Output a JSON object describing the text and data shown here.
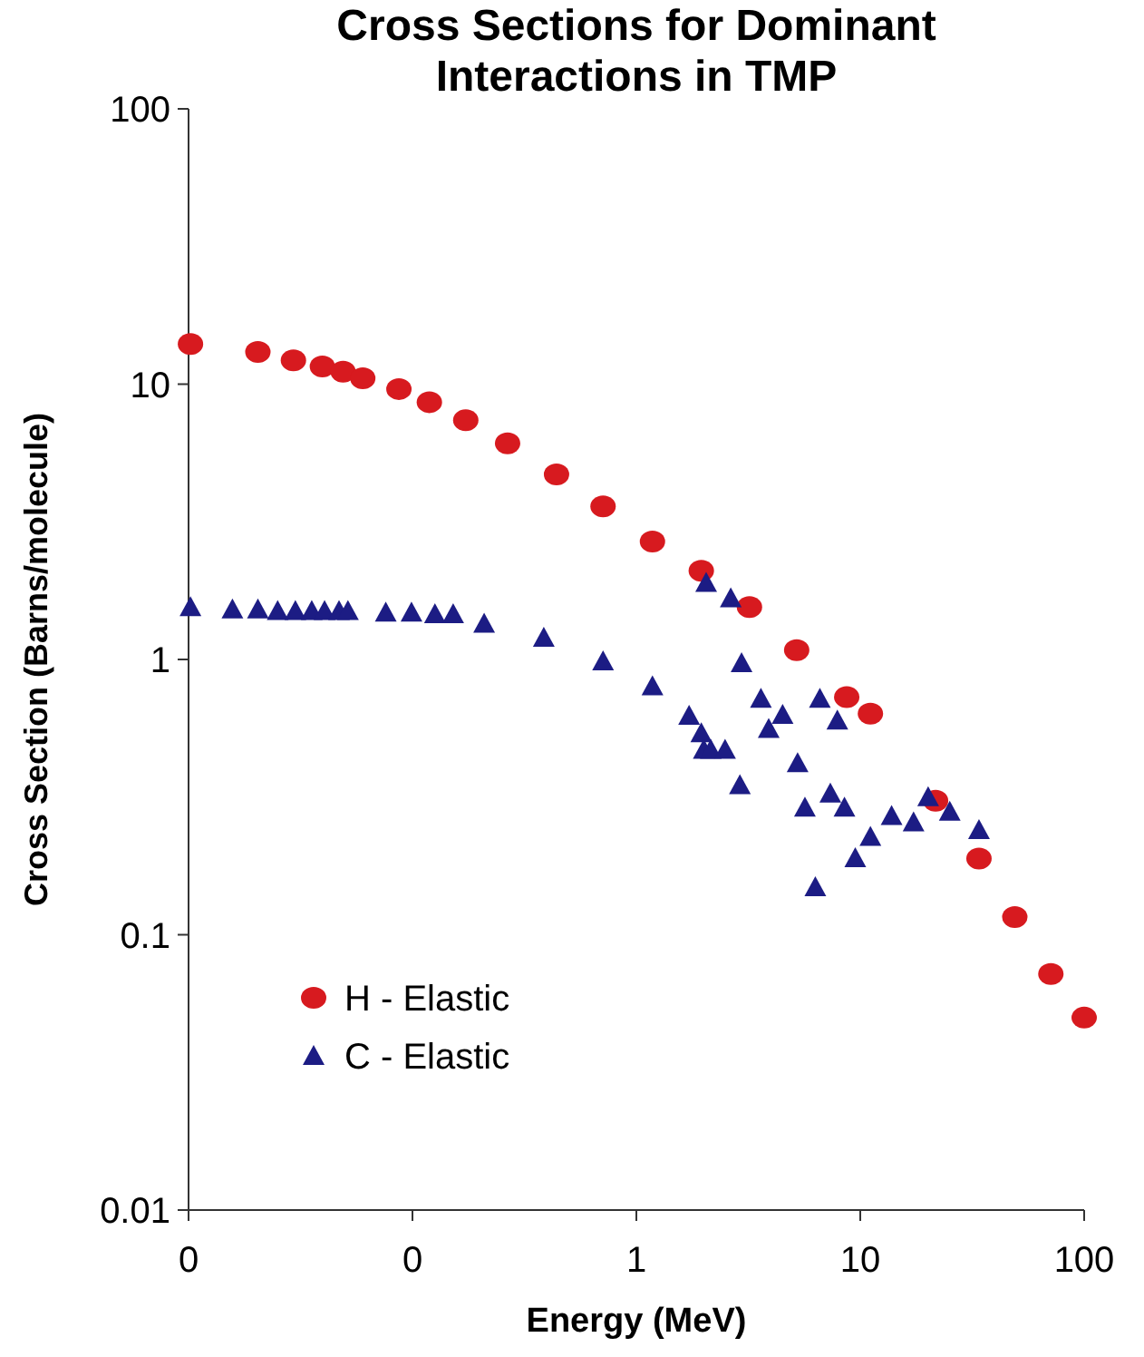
{
  "chart_data": {
    "type": "scatter",
    "title": "Cross Sections for Dominant Interactions in TMP",
    "xlabel": "Energy (MeV)",
    "ylabel": "Cross Section (Barns/molecule)",
    "log": "xy",
    "grid": false,
    "legend": "bottom left",
    "xlim": [
      0.01,
      100
    ],
    "xticks": [
      {
        "value": 0.01,
        "label": "0"
      },
      {
        "value": 0.1,
        "label": "0"
      },
      1,
      10,
      100
    ],
    "ylim": [
      0.01,
      100
    ],
    "yticks": [
      0.01,
      0.1,
      1,
      10,
      100
    ],
    "series": [
      {
        "name": "H - Elastic",
        "color": "#d71a1f",
        "marker": "circle",
        "x": [
          0.0102,
          0.0204,
          0.0294,
          0.0396,
          0.049,
          0.06,
          0.087,
          0.119,
          0.173,
          0.266,
          0.44,
          0.71,
          1.18,
          1.95,
          3.2,
          5.2,
          8.7,
          11.1,
          21.7,
          33.9,
          49,
          71,
          100
        ],
        "values": [
          14.0,
          13.1,
          12.2,
          11.6,
          11.1,
          10.5,
          9.6,
          8.6,
          7.4,
          6.1,
          4.7,
          3.6,
          2.68,
          2.1,
          1.55,
          1.08,
          0.73,
          0.635,
          0.307,
          0.189,
          0.116,
          0.072,
          0.05
        ]
      },
      {
        "name": "C - Elastic",
        "color": "#1c1c84",
        "marker": "triangle",
        "x": [
          0.0102,
          0.0157,
          0.0204,
          0.025,
          0.03,
          0.0355,
          0.0405,
          0.047,
          0.0515,
          0.076,
          0.099,
          0.126,
          0.152,
          0.209,
          0.386,
          0.71,
          1.18,
          1.72,
          1.95,
          2.0,
          2.05,
          2.15,
          2.49,
          2.64,
          2.9,
          2.95,
          3.6,
          3.9,
          4.5,
          5.25,
          5.66,
          6.3,
          6.6,
          7.35,
          7.9,
          8.5,
          9.5,
          11.1,
          13.8,
          17.3,
          20.1,
          25.1,
          33.9
        ],
        "values": [
          1.55,
          1.52,
          1.52,
          1.5,
          1.5,
          1.5,
          1.5,
          1.5,
          1.5,
          1.48,
          1.48,
          1.46,
          1.46,
          1.35,
          1.2,
          0.985,
          0.8,
          0.625,
          0.54,
          0.47,
          1.9,
          0.47,
          0.47,
          1.67,
          0.35,
          0.97,
          0.72,
          0.56,
          0.63,
          0.42,
          0.29,
          0.149,
          0.72,
          0.326,
          0.6,
          0.29,
          0.19,
          0.227,
          0.27,
          0.256,
          0.316,
          0.28,
          0.24
        ]
      }
    ]
  }
}
